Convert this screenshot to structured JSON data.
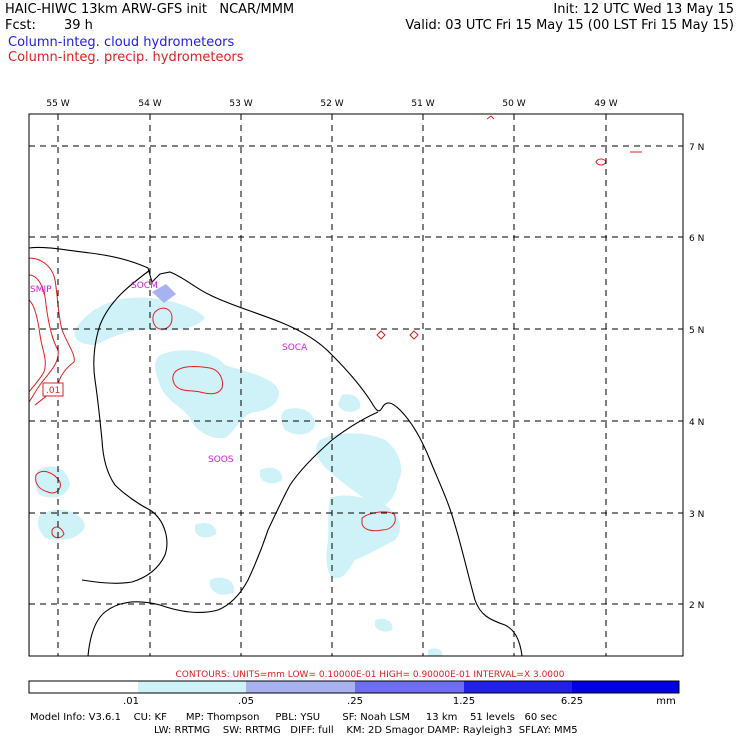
{
  "header": {
    "title_left": "HAIC-HIWC 13km ARW-GFS init   NCAR/MMM",
    "init": "Init: 12 UTC Wed 13 May 15",
    "fcst_label": "Fcst:",
    "fcst_value": "39 h",
    "valid": "Valid: 03 UTC Fri 15 May 15 (00 LST Fri 15 May 15)",
    "legend_cloud": "Column-integ. cloud hydrometeors",
    "legend_precip": "Column-integ. precip. hydrometeors"
  },
  "map": {
    "lon_labels": [
      "55 W",
      "54 W",
      "53 W",
      "52 W",
      "51 W",
      "50 W",
      "49 W"
    ],
    "lat_labels": [
      "7 N",
      "6 N",
      "5 N",
      "4 N",
      "3 N",
      "2 N"
    ],
    "stations": [
      "SMJP",
      "SOCM",
      "SOCA",
      "SOOS"
    ],
    "contour_label": ".01"
  },
  "contour_info": "CONTOURS:  UNITS=mm  LOW= 0.10000E-01  HIGH= 0.90000E-01  INTERVAL=X  3.0000",
  "colorbar": {
    "ticks": [
      ".01",
      ".05",
      ".25",
      "1.25",
      "6.25"
    ],
    "unit": "mm",
    "colors": [
      "#ffffff",
      "#cff2f8",
      "#a8b2f0",
      "#6e6ef0",
      "#2020e8",
      "#0000e8"
    ]
  },
  "model_info": {
    "line1": "Model Info: V3.6.1    CU: KF      MP: Thompson     PBL: YSU       SF: Noah LSM     13 km    51 levels   60 sec",
    "line2": "LW: RRTMG    SW: RRTMG   DIFF: full    KM: 2D Smagor DAMP: Rayleigh3  SFLAY: MM5"
  },
  "colors": {
    "cloud": "#2020e0",
    "precip": "#e02020",
    "station": "#d020d0"
  }
}
